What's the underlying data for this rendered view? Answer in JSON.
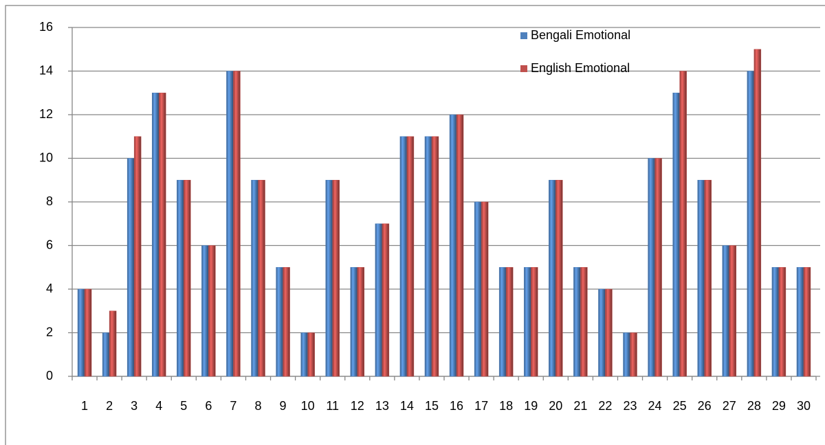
{
  "chart_data": {
    "type": "bar",
    "categories": [
      "1",
      "2",
      "3",
      "4",
      "5",
      "6",
      "7",
      "8",
      "9",
      "10",
      "11",
      "12",
      "13",
      "14",
      "15",
      "16",
      "17",
      "18",
      "19",
      "20",
      "21",
      "22",
      "23",
      "24",
      "25",
      "26",
      "27",
      "28",
      "29",
      "30"
    ],
    "series": [
      {
        "name": "Bengali Emotional",
        "color": "#4f81bd",
        "values": [
          4,
          2,
          10,
          13,
          9,
          6,
          14,
          9,
          5,
          2,
          9,
          5,
          7,
          11,
          11,
          12,
          8,
          5,
          5,
          9,
          5,
          4,
          2,
          10,
          13,
          9,
          6,
          14,
          5,
          5
        ]
      },
      {
        "name": "English Emotional",
        "color": "#c0504d",
        "values": [
          4,
          3,
          11,
          13,
          9,
          6,
          14,
          9,
          5,
          2,
          9,
          5,
          7,
          11,
          11,
          12,
          8,
          5,
          5,
          9,
          5,
          4,
          2,
          10,
          14,
          9,
          6,
          15,
          5,
          5
        ]
      }
    ],
    "ylim": [
      0,
      16
    ],
    "yticks": [
      0,
      2,
      4,
      6,
      8,
      10,
      12,
      14,
      16
    ],
    "grid": true,
    "legend": "upper right"
  }
}
